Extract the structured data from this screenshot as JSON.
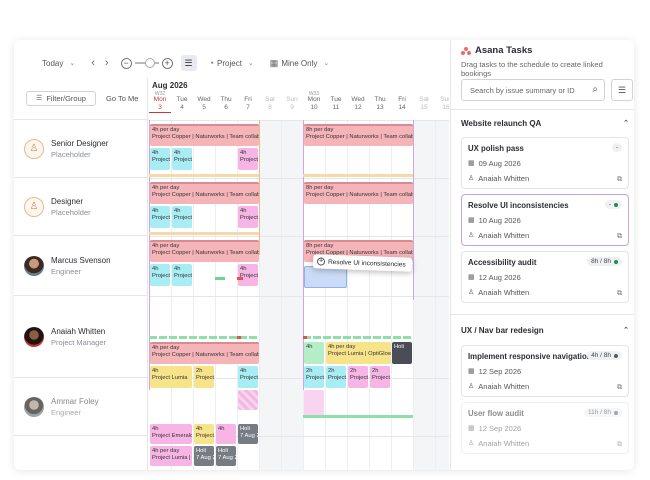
{
  "toolbar": {
    "today_label": "Today",
    "project_label": "Project",
    "mine_label": "Mine Only"
  },
  "left": {
    "filter_label": "Filter/Group",
    "goto_label": "Go To Me",
    "resources": [
      {
        "name": "Senior Designer",
        "sub": "Placeholder"
      },
      {
        "name": "Designer",
        "sub": "Placeholder"
      },
      {
        "name": "Marcus Svenson",
        "sub": "Engineer"
      },
      {
        "name": "Anaiah Whitten",
        "sub": "Project Manager"
      },
      {
        "name": "Ammar Foley",
        "sub": "Engineer"
      }
    ]
  },
  "calendar": {
    "month": "Aug 2026",
    "days": [
      {
        "wk": "W32",
        "name": "Mon",
        "num": "3",
        "today": true
      },
      {
        "wk": "",
        "name": "Tue",
        "num": "4"
      },
      {
        "wk": "",
        "name": "Wed",
        "num": "5"
      },
      {
        "wk": "",
        "name": "Thu",
        "num": "6"
      },
      {
        "wk": "",
        "name": "Fri",
        "num": "7"
      },
      {
        "wk": "",
        "name": "Sat",
        "num": "8",
        "we": true
      },
      {
        "wk": "",
        "name": "Sun",
        "num": "9",
        "we": true
      },
      {
        "wk": "W33",
        "name": "Mon",
        "num": "10"
      },
      {
        "wk": "",
        "name": "Tue",
        "num": "11"
      },
      {
        "wk": "",
        "name": "Wed",
        "num": "12"
      },
      {
        "wk": "",
        "name": "Thu",
        "num": "13"
      },
      {
        "wk": "",
        "name": "Fri",
        "num": "14"
      },
      {
        "wk": "",
        "name": "Sat",
        "num": "15",
        "we": true
      },
      {
        "wk": "",
        "name": "Sun",
        "num": "16",
        "we": true
      }
    ],
    "bookings": {
      "per_day_4h": "4h per day",
      "per_day_8h": "8h per day",
      "projects_long": "Project Copper | Naturworks | Team collab",
      "projects_long2": "Project Copper | Naturworks | Team collabo",
      "short_4h": "4h",
      "short_2h": "2h",
      "project_a": "Project A",
      "project_lumia": "Project Lumia",
      "project_lumia2": "Project Lumia | Project",
      "project_optiglow": "Project Lumia | OptiGlow",
      "project_emerald": "Project Emerald | Project",
      "holi": "Holi",
      "holi_date": "7 Aug 2",
      "project_p": "Project",
      "project_c": "Project C"
    },
    "drag_label": "Resolve UI inconsistencies"
  },
  "panel": {
    "title": "Asana Tasks",
    "subtitle": "Drag tasks to the schedule to create linked bookings",
    "search_placeholder": "Search by issue summary or ID",
    "groups": [
      {
        "name": "Website relaunch QA",
        "tasks": [
          {
            "title": "UX polish pass",
            "date": "09 Aug 2026",
            "assignee": "Anaiah Whitten",
            "badge": "-"
          },
          {
            "title": "Resolve UI inconsistencies",
            "date": "10 Aug 2026",
            "assignee": "Anaiah Whitten",
            "badge": "-",
            "dot": "#1e8e4e"
          },
          {
            "title": "Accessibility audit",
            "date": "12 Aug 2026",
            "assignee": "Anaiah Whitten",
            "badge": "8h / 8h",
            "dot": "#1e8e4e"
          }
        ]
      },
      {
        "name": "UX / Nav bar redesign",
        "tasks": [
          {
            "title": "Implement responsive navigation",
            "date": "12 Sep 2026",
            "assignee": "Anaiah Whitten",
            "badge": "4h / 8h",
            "dot": "#555b66"
          },
          {
            "title": "User flow audit",
            "date": "12 Sep 2026",
            "assignee": "Anaiah Whitten",
            "badge": "11h / 8h",
            "dot": "#555b66"
          }
        ]
      }
    ]
  }
}
